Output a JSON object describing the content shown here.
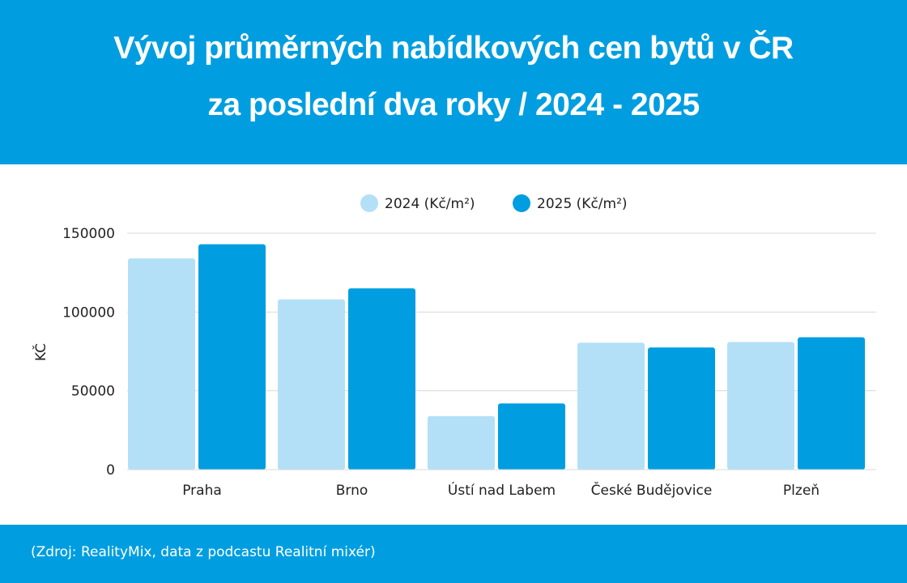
{
  "header": {
    "title_line1": "Vývoj průměrných nabídkových cen bytů v ČR",
    "title_line2": "za poslední dva roky / 2024 - 2025"
  },
  "footer": {
    "source": "(Zdroj: RealityMix, data z podcastu Realitní mixér)"
  },
  "colors": {
    "brand": "#009ee0",
    "series_2024": "#b3e0f7",
    "series_2025": "#009ee0",
    "gridline": "#d9d9d9",
    "text": "#222222"
  },
  "chart_data": {
    "type": "bar",
    "categories": [
      "Praha",
      "Brno",
      "Ústí nad Labem",
      "České Budějovice",
      "Plzeň"
    ],
    "series": [
      {
        "name": "2024 (Kč/m²)",
        "values": [
          134000,
          108000,
          34000,
          80500,
          81000
        ]
      },
      {
        "name": "2025 (Kč/m²)",
        "values": [
          143000,
          115000,
          42000,
          77500,
          84000
        ]
      }
    ],
    "ylabel": "KČ",
    "ylim": [
      0,
      150000
    ],
    "yticks": [
      "0",
      "50000",
      "100000",
      "150000"
    ],
    "grid": true,
    "legend_position": "top-center"
  }
}
